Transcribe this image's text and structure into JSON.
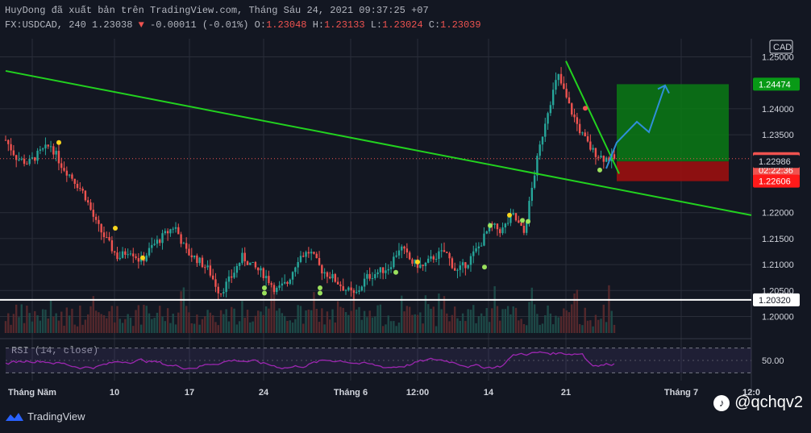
{
  "header": {
    "line1": "HuyDong đã xuất bản trên TradingView.com, Tháng Sáu 24, 2021 09:37:25 +07",
    "symbol": "FX:USDCAD, 240 1.23038",
    "change": "-0.00011 (-0.01%)",
    "o_label": "O:",
    "o_value": "1.23048",
    "h_label": "H:",
    "h_value": "1.23133",
    "l_label": "L:",
    "l_value": "1.23024",
    "c_label": "C:",
    "c_value": "1.23039"
  },
  "colors": {
    "bg": "#131722",
    "up": "#26a69a",
    "down": "#ef5350",
    "trend": "#22d21f",
    "grid": "#2a2e39",
    "rsi": "#9c27b0",
    "long_target": "#0a7a14",
    "long_stop": "#9b1010",
    "arrow": "#2f8fd8"
  },
  "footer": {
    "brand": "TradingView",
    "watermark": "@qchqv2"
  },
  "chart_data": {
    "type": "candlestick",
    "title": "FX:USDCAD, 240",
    "currency": "CAD",
    "y_ticks": [
      "1.25000",
      "1.24000",
      "1.23500",
      "1.22000",
      "1.21500",
      "1.21000",
      "1.20500",
      "1.20000"
    ],
    "y_tick_values": [
      1.25,
      1.24,
      1.235,
      1.22,
      1.215,
      1.21,
      1.205,
      1.2
    ],
    "ylim": [
      1.1965,
      1.2535
    ],
    "x_ticks": [
      "Tháng Năm",
      "10",
      "17",
      "24",
      "Tháng 6",
      "12:00",
      "14",
      "21",
      "Tháng 7",
      "12:0"
    ],
    "price_labels": [
      {
        "text": "1.24474",
        "value": 1.24474,
        "kind": "target"
      },
      {
        "text": "1.23039",
        "value": 1.23039,
        "kind": "last",
        "countdown": "02:22:36"
      },
      {
        "text": "1.22986",
        "value": 1.22986,
        "kind": "entry"
      },
      {
        "text": "1.22606",
        "value": 1.22606,
        "kind": "stop"
      },
      {
        "text": "1.20320",
        "value": 1.2032,
        "kind": "support"
      }
    ],
    "price_path": [
      1.234,
      1.2305,
      1.2295,
      1.2315,
      1.233,
      1.229,
      1.2265,
      1.2235,
      1.218,
      1.2145,
      1.2112,
      1.213,
      1.2105,
      1.2135,
      1.2155,
      1.2175,
      1.2125,
      1.211,
      1.209,
      1.2045,
      1.2075,
      1.2115,
      1.2095,
      1.208,
      1.205,
      1.2065,
      1.2115,
      1.2125,
      1.209,
      1.2075,
      1.2055,
      1.204,
      1.2075,
      1.2085,
      1.2095,
      1.2135,
      1.2105,
      1.2095,
      1.2115,
      1.2125,
      1.2085,
      1.2105,
      1.2135,
      1.2175,
      1.2165,
      1.2195,
      1.216,
      1.2285,
      1.239,
      1.2465,
      1.2405,
      1.2355,
      1.232,
      1.2305,
      1.2304
    ],
    "rsi": {
      "label": "RSI (14, close)",
      "level_labels": [
        "50.00"
      ],
      "levels": [
        70,
        50,
        30
      ]
    },
    "trendlines": [
      {
        "name": "descending-long",
        "from": {
          "date": "Tháng Năm",
          "value": 1.2473
        },
        "to": {
          "date": "after 12:00",
          "value": 1.2195
        }
      },
      {
        "name": "drop-from-high",
        "from": {
          "date": "21",
          "value": 1.2492
        },
        "to": {
          "date": "after 21",
          "value": 1.2275
        }
      }
    ],
    "position": {
      "type": "long",
      "entry": 1.22986,
      "target": 1.24474,
      "stop": 1.22606
    },
    "horizontal_line": 1.2032
  }
}
